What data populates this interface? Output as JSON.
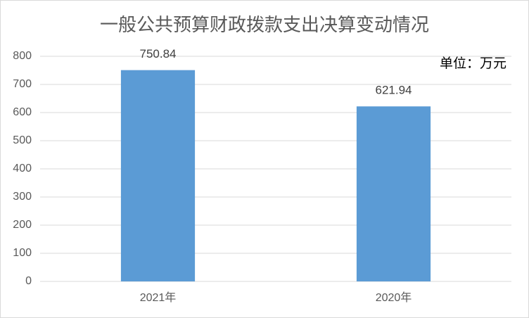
{
  "chart_data": {
    "type": "bar",
    "title": "一般公共预算财政拨款支出决算变动情况",
    "annotation": "单位：万元",
    "categories": [
      "2021年",
      "2020年"
    ],
    "values": [
      750.84,
      621.94
    ],
    "color": "#5b9bd5",
    "ylim": [
      0,
      800
    ],
    "yticks": [
      0,
      100,
      200,
      300,
      400,
      500,
      600,
      700,
      800
    ],
    "grid": true
  }
}
